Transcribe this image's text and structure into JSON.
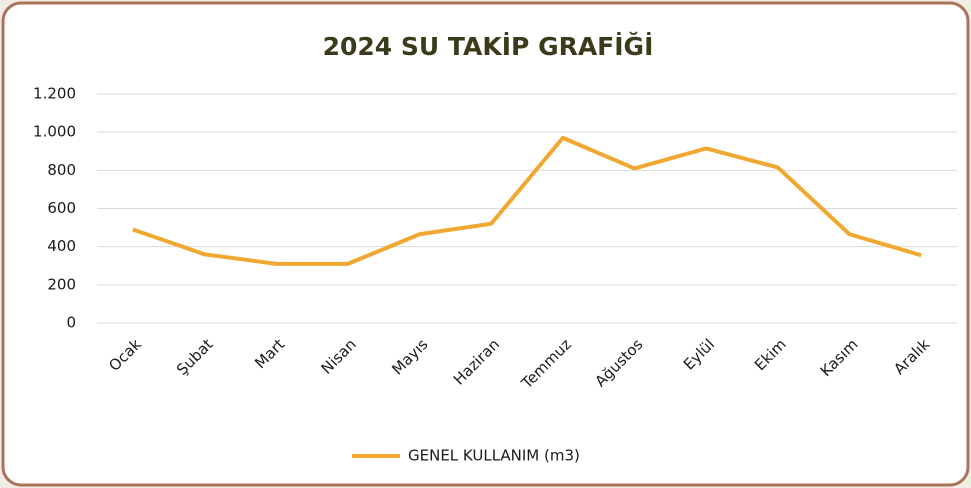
{
  "chart_data": {
    "type": "line",
    "title": "2024 SU TAKİP GRAFİĞİ",
    "categories": [
      "Ocak",
      "Şubat",
      "Mart",
      "Nisan",
      "Mayıs",
      "Haziran",
      "Temmuz",
      "Ağustos",
      "Eylül",
      "Ekim",
      "Kasım",
      "Aralık"
    ],
    "series": [
      {
        "name": "GENEL KULLANIM (m3)",
        "color": "#f0a830",
        "values": [
          490,
          360,
          310,
          310,
          465,
          520,
          970,
          810,
          915,
          815,
          465,
          355
        ]
      }
    ],
    "ylim": [
      0,
      1200
    ],
    "yticks": [
      0,
      200,
      400,
      600,
      800,
      {
        "value": 1000,
        "label": "1.000"
      },
      {
        "value": 1200,
        "label": "1.200"
      }
    ],
    "grid": true,
    "legend": "bottom"
  }
}
